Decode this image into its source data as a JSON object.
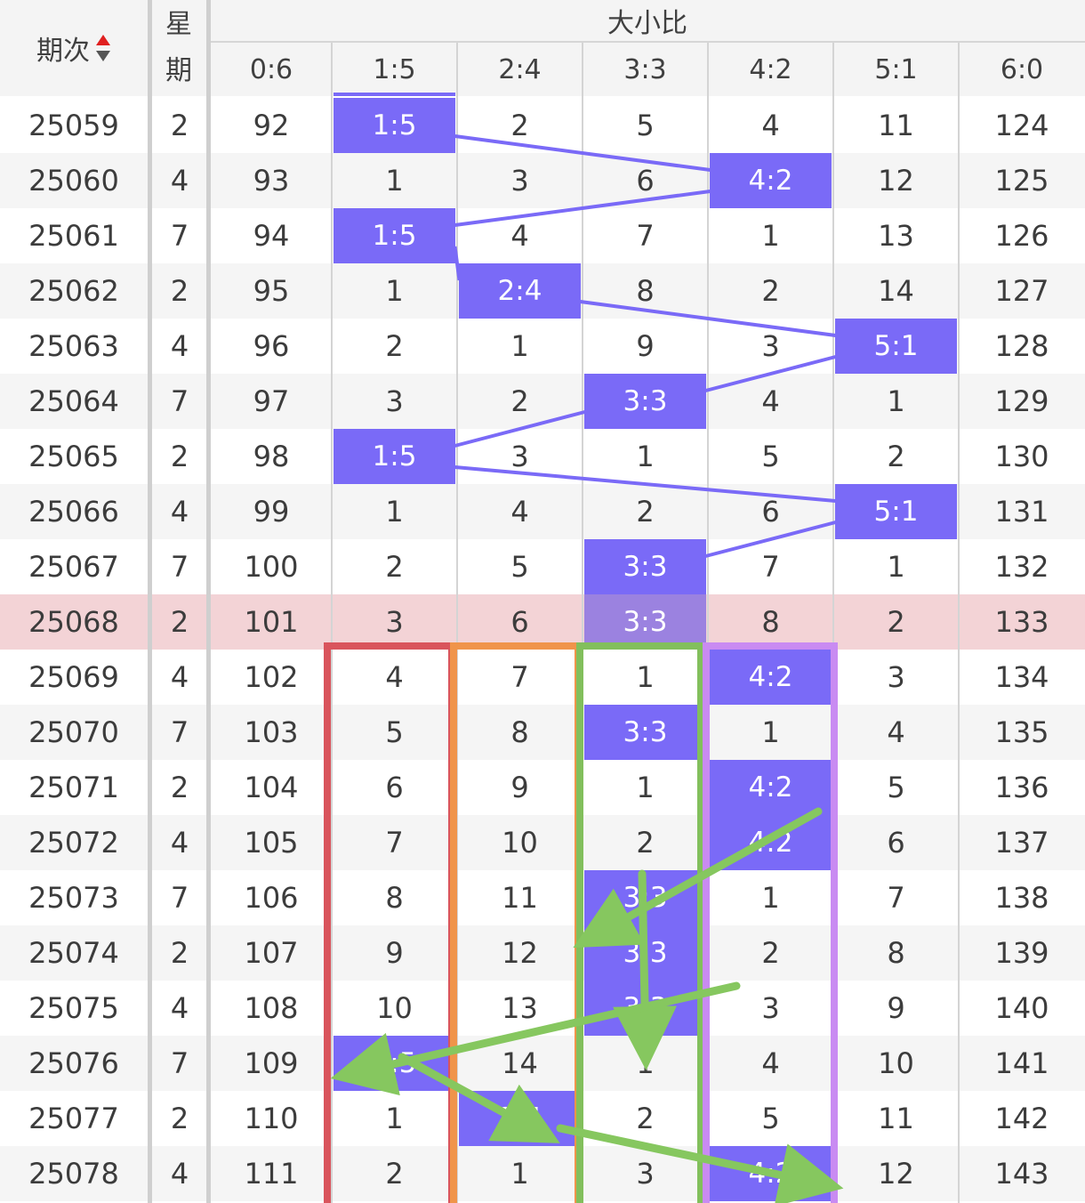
{
  "header": {
    "period_label": "期次",
    "week_label_line1": "星",
    "week_label_line2": "期",
    "group_title": "大小比",
    "columns": [
      "0:6",
      "1:5",
      "2:4",
      "3:3",
      "4:2",
      "5:1",
      "6:0"
    ]
  },
  "colors": {
    "hit": "#7a6af7",
    "trend_line": "#7a6af7",
    "current_row": "#f3d3d6",
    "box_red": "#d9545c",
    "box_orange": "#f0944a",
    "box_green": "#82bf5c",
    "box_purple": "#c98bf2",
    "arrow_green": "#86c75f"
  },
  "current_period": "25068",
  "rows": [
    {
      "period": "25059",
      "week": "2",
      "cells": [
        "92",
        "1:5",
        "2",
        "5",
        "4",
        "11",
        "124"
      ],
      "hit": 1
    },
    {
      "period": "25060",
      "week": "4",
      "cells": [
        "93",
        "1",
        "3",
        "6",
        "4:2",
        "12",
        "125"
      ],
      "hit": 4
    },
    {
      "period": "25061",
      "week": "7",
      "cells": [
        "94",
        "1:5",
        "4",
        "7",
        "1",
        "13",
        "126"
      ],
      "hit": 1
    },
    {
      "period": "25062",
      "week": "2",
      "cells": [
        "95",
        "1",
        "2:4",
        "8",
        "2",
        "14",
        "127"
      ],
      "hit": 2
    },
    {
      "period": "25063",
      "week": "4",
      "cells": [
        "96",
        "2",
        "1",
        "9",
        "3",
        "5:1",
        "128"
      ],
      "hit": 5
    },
    {
      "period": "25064",
      "week": "7",
      "cells": [
        "97",
        "3",
        "2",
        "3:3",
        "4",
        "1",
        "129"
      ],
      "hit": 3
    },
    {
      "period": "25065",
      "week": "2",
      "cells": [
        "98",
        "1:5",
        "3",
        "1",
        "5",
        "2",
        "130"
      ],
      "hit": 1
    },
    {
      "period": "25066",
      "week": "4",
      "cells": [
        "99",
        "1",
        "4",
        "2",
        "6",
        "5:1",
        "131"
      ],
      "hit": 5
    },
    {
      "period": "25067",
      "week": "7",
      "cells": [
        "100",
        "2",
        "5",
        "3:3",
        "7",
        "1",
        "132"
      ],
      "hit": 3
    },
    {
      "period": "25068",
      "week": "2",
      "cells": [
        "101",
        "3",
        "6",
        "3:3",
        "8",
        "2",
        "133"
      ],
      "hit": 3
    },
    {
      "period": "25069",
      "week": "4",
      "cells": [
        "102",
        "4",
        "7",
        "1",
        "4:2",
        "3",
        "134"
      ],
      "hit": 4
    },
    {
      "period": "25070",
      "week": "7",
      "cells": [
        "103",
        "5",
        "8",
        "3:3",
        "1",
        "4",
        "135"
      ],
      "hit": 3
    },
    {
      "period": "25071",
      "week": "2",
      "cells": [
        "104",
        "6",
        "9",
        "1",
        "4:2",
        "5",
        "136"
      ],
      "hit": 4
    },
    {
      "period": "25072",
      "week": "4",
      "cells": [
        "105",
        "7",
        "10",
        "2",
        "4:2",
        "6",
        "137"
      ],
      "hit": 4
    },
    {
      "period": "25073",
      "week": "7",
      "cells": [
        "106",
        "8",
        "11",
        "3:3",
        "1",
        "7",
        "138"
      ],
      "hit": 3
    },
    {
      "period": "25074",
      "week": "2",
      "cells": [
        "107",
        "9",
        "12",
        "3:3",
        "2",
        "8",
        "139"
      ],
      "hit": 3
    },
    {
      "period": "25075",
      "week": "4",
      "cells": [
        "108",
        "10",
        "13",
        "3:3",
        "3",
        "9",
        "140"
      ],
      "hit": 3
    },
    {
      "period": "25076",
      "week": "7",
      "cells": [
        "109",
        "1:5",
        "14",
        "1",
        "4",
        "10",
        "141"
      ],
      "hit": 1
    },
    {
      "period": "25077",
      "week": "2",
      "cells": [
        "110",
        "1",
        "2:4",
        "2",
        "5",
        "11",
        "142"
      ],
      "hit": 2
    },
    {
      "period": "25078",
      "week": "4",
      "cells": [
        "111",
        "2",
        "1",
        "3",
        "4:2",
        "12",
        "143"
      ],
      "hit": 4
    }
  ]
}
